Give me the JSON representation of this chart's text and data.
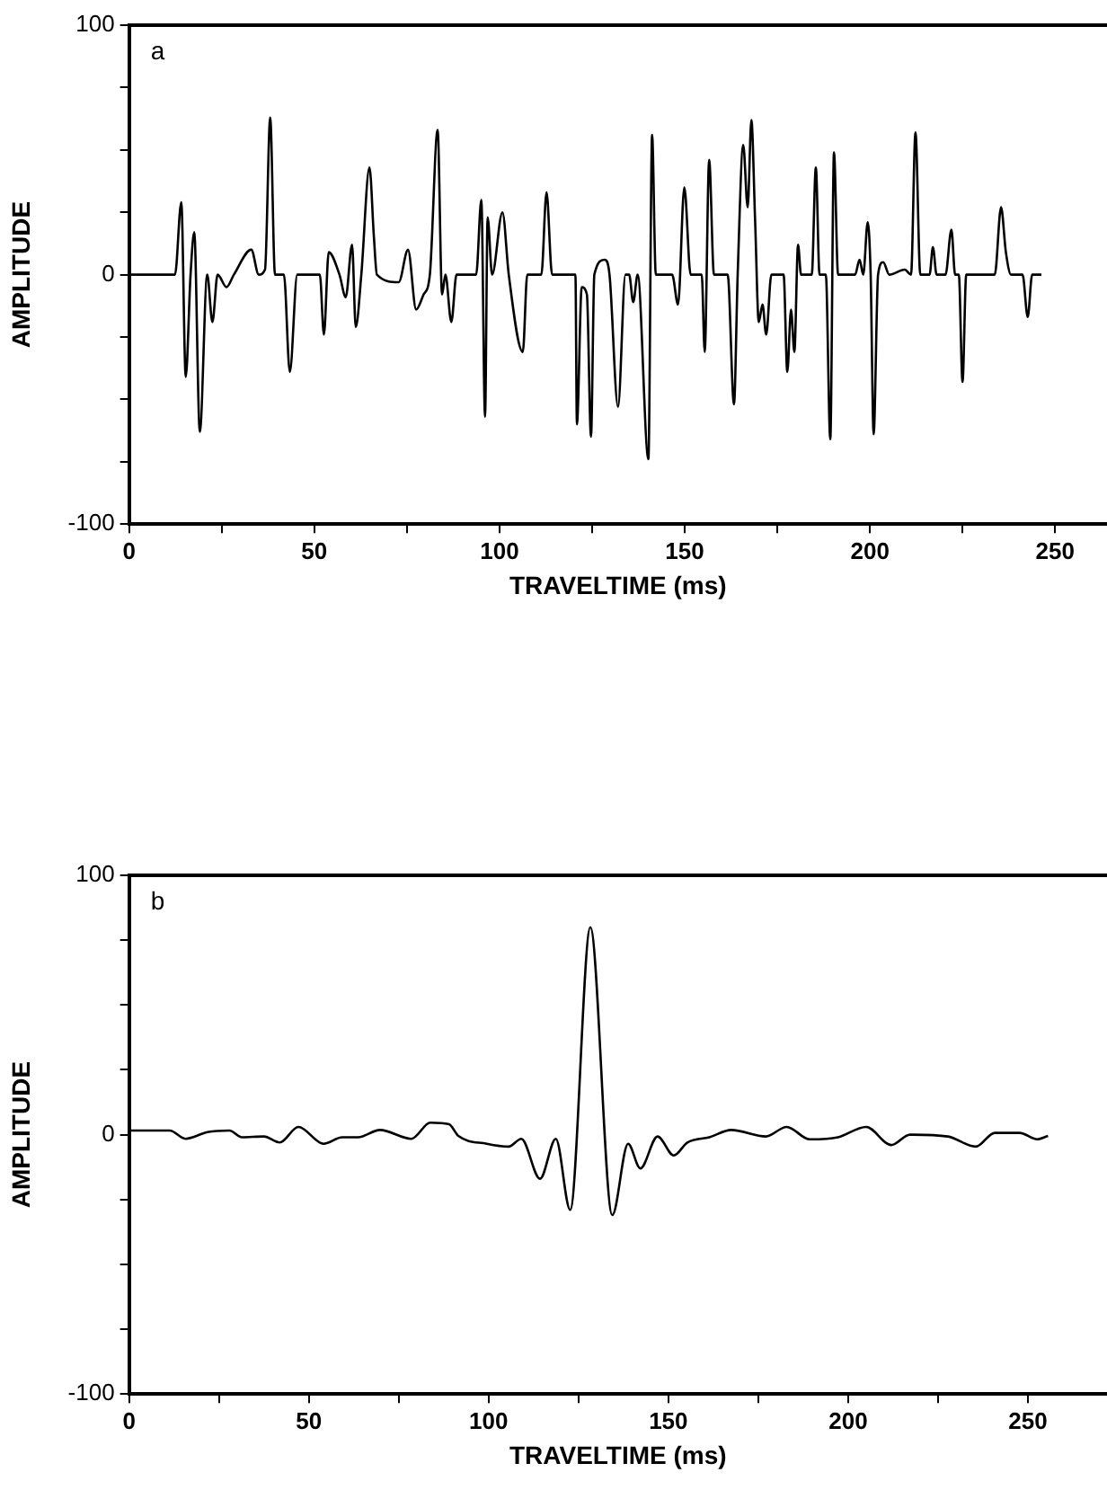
{
  "chart_data": [
    {
      "type": "line",
      "annotations": [
        "a"
      ],
      "xlabel": "TRAVELTIME (ms)",
      "ylabel": "AMPLITUDE",
      "marker": "none",
      "line_style": "solid",
      "x": [
        0,
        12.4,
        14.1,
        15.3,
        16.6,
        17.6,
        19.1,
        21.1,
        22.5,
        23.9,
        26.3,
        28.3,
        33,
        35,
        36.7,
        38.1,
        39.4,
        41.8,
        43.4,
        45.4,
        51.5,
        52.6,
        53.9,
        56.8,
        58.5,
        60.2,
        61.2,
        62.7,
        64.9,
        66.1,
        66.9,
        72.8,
        75.3,
        77.5,
        79.5,
        81.2,
        83.3,
        84.5,
        85.4,
        87,
        88.4,
        93.7,
        95.1,
        96.1,
        96.8,
        98,
        100.8,
        102.5,
        106.3,
        107.5,
        111.3,
        112.7,
        114.2,
        120.5,
        120.9,
        122.2,
        123.6,
        124.7,
        125.6,
        128.4,
        129.7,
        132,
        134,
        135,
        136.1,
        137.3,
        140.2,
        141.2,
        142.2,
        146.6,
        148.2,
        149.9,
        151.6,
        154.6,
        155.4,
        156.6,
        157.9,
        161.6,
        163.3,
        164.3,
        165.8,
        167,
        168,
        169,
        170,
        171,
        172,
        173.4,
        176.7,
        177.7,
        178.7,
        179.6,
        180.6,
        181.4,
        184.3,
        185.4,
        186.4,
        188.1,
        189.3,
        190.3,
        191.4,
        196,
        197.2,
        198.2,
        199.4,
        200.2,
        201,
        202.2,
        203.6,
        205.2,
        209.4,
        211.1,
        212.3,
        213.6,
        216.1,
        217,
        218,
        220.4,
        222,
        223,
        224,
        225,
        226,
        233.7,
        235.4,
        236.7,
        238.1,
        241.2,
        242.6,
        243.8,
        246.3
      ],
      "series": [
        {
          "color": "#000000",
          "values": [
            0,
            0,
            29,
            -41,
            0,
            17,
            -63,
            0,
            -19,
            0,
            -5,
            0,
            10,
            0,
            2,
            63,
            0,
            0,
            -39,
            0,
            0,
            -24,
            9,
            0,
            -9,
            12,
            -21,
            0,
            43,
            15,
            0,
            -3,
            10,
            -14,
            -8,
            0,
            58,
            -8,
            0,
            -19,
            0,
            0,
            30,
            -57,
            23,
            0,
            25,
            0,
            -31,
            0,
            0,
            33,
            0,
            0,
            -60,
            -5,
            -8,
            -65,
            0,
            6,
            0,
            -53,
            0,
            0,
            -11,
            0,
            -74,
            56,
            0,
            0,
            -12,
            35,
            0,
            0,
            -31,
            46,
            0,
            0,
            -52,
            0,
            52,
            27,
            62,
            22,
            -19,
            -12,
            -24,
            0,
            0,
            -39,
            -14,
            -31,
            12,
            0,
            0,
            43,
            0,
            0,
            -66,
            49,
            0,
            0,
            6,
            0,
            21,
            0,
            -64,
            0,
            5,
            0,
            2,
            0,
            57,
            0,
            0,
            11,
            0,
            0,
            18,
            0,
            0,
            -43,
            0,
            0,
            27,
            9,
            0,
            0,
            -17,
            0,
            0
          ]
        }
      ],
      "xlim": [
        0,
        264
      ],
      "xticks": [
        0,
        {
          "value": 25,
          "label": null
        },
        50,
        {
          "value": 75,
          "label": null
        },
        100,
        {
          "value": 125,
          "label": null
        },
        150,
        {
          "value": 175,
          "label": null
        },
        200,
        {
          "value": 225,
          "label": null
        },
        250
      ],
      "ylim": [
        -100,
        100
      ],
      "yticks": [
        -100,
        {
          "value": -75,
          "label": null
        },
        {
          "value": -50,
          "label": null
        },
        {
          "value": -25,
          "label": null
        },
        0,
        {
          "value": 25,
          "label": null
        },
        {
          "value": 50,
          "label": null
        },
        {
          "value": 75,
          "label": null
        },
        100
      ]
    },
    {
      "type": "line",
      "annotations": [
        "b"
      ],
      "xlabel": "TRAVELTIME (ms)",
      "ylabel": "AMPLITUDE",
      "marker": "none",
      "line_style": "solid",
      "x": [
        0,
        11.3,
        15.7,
        21.8,
        27.9,
        31.4,
        37.5,
        41.9,
        47.1,
        54.1,
        59.3,
        63.7,
        69.8,
        78.5,
        83.8,
        89,
        91.6,
        99.5,
        105.6,
        109.1,
        114.3,
        118.7,
        122.7,
        128.3,
        134.4,
        138.8,
        142.2,
        147,
        151.5,
        155.3,
        161.4,
        167.5,
        177.1,
        182.9,
        189.3,
        197.2,
        205,
        212,
        217.2,
        227.7,
        235.5,
        240.8,
        247.7,
        252.6,
        255.6
      ],
      "series": [
        {
          "color": "#000000",
          "values": [
            1.6,
            1.6,
            -1.6,
            1,
            1.6,
            -1,
            -0.7,
            -3,
            3,
            -3.5,
            -1,
            -1,
            1.8,
            -1.6,
            4.6,
            4,
            -0.5,
            -3.5,
            -4.6,
            -1.6,
            -17,
            -1.6,
            -29,
            80,
            -31,
            -3.5,
            -13,
            -0.7,
            -8,
            -3,
            -1,
            1.8,
            -0.7,
            3,
            -1.8,
            -1,
            3,
            -4,
            0,
            -0.7,
            -4.6,
            0.7,
            0.7,
            -1.8,
            -0.5
          ]
        }
      ],
      "xlim": [
        0,
        272
      ],
      "xticks": [
        0,
        {
          "value": 25,
          "label": null
        },
        50,
        {
          "value": 75,
          "label": null
        },
        100,
        {
          "value": 125,
          "label": null
        },
        150,
        {
          "value": 175,
          "label": null
        },
        200,
        {
          "value": 225,
          "label": null
        },
        250
      ],
      "ylim": [
        -100,
        100
      ],
      "yticks": [
        -100,
        {
          "value": -75,
          "label": null
        },
        {
          "value": -50,
          "label": null
        },
        {
          "value": -25,
          "label": null
        },
        0,
        {
          "value": 25,
          "label": null
        },
        {
          "value": 50,
          "label": null
        },
        {
          "value": 75,
          "label": null
        },
        100
      ]
    }
  ]
}
